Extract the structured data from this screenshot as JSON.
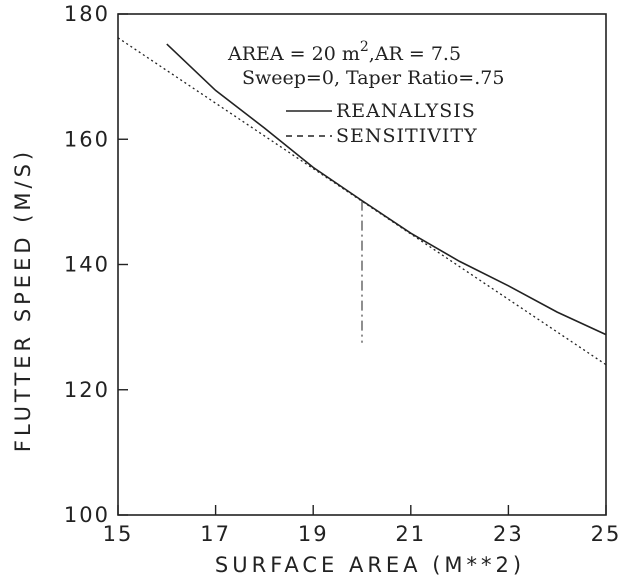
{
  "chart_data": {
    "type": "line",
    "xlabel": "SURFACE AREA (M**2)",
    "ylabel": "FLUTTER SPEED (M/S)",
    "xlim": [
      15,
      25
    ],
    "ylim": [
      100,
      180
    ],
    "x_ticks": [
      "15",
      "17",
      "19",
      "21",
      "23",
      "25"
    ],
    "y_ticks": [
      "100",
      "120",
      "140",
      "160",
      "180"
    ],
    "grid": false,
    "legend_position": "top-right",
    "annotation_line1": "AREA = 20 m",
    "annotation_superscript": "2",
    "annotation_line1_suffix": ",AR = 7.5",
    "annotation_line2": "Sweep=0, Taper Ratio=.75",
    "series": [
      {
        "name": "REANALYSIS",
        "style": "solid",
        "x": [
          16,
          17,
          18,
          19,
          20,
          21,
          22,
          23,
          24,
          25
        ],
        "y": [
          175.2,
          167.8,
          161.8,
          155.5,
          150.2,
          145.0,
          140.5,
          136.6,
          132.4,
          128.8
        ]
      },
      {
        "name": "SENSITIVITY",
        "style": "dashed",
        "x": [
          15,
          25
        ],
        "y": [
          176.2,
          124.0
        ]
      }
    ],
    "marker_line": {
      "x": 20,
      "y_from": 127.5,
      "y_to": 150.2
    }
  }
}
